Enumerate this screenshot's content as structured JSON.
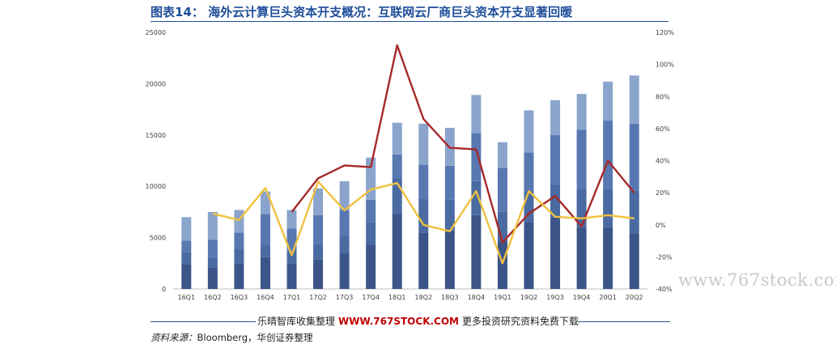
{
  "header": {
    "title": "图表14： 海外云计算巨头资本开支概况：互联网云厂商巨头资本开支显著回暖"
  },
  "footer": {
    "promo_left": "乐晴智库收集整理",
    "promo_url": "WWW.767STOCK.COM",
    "promo_right": "更多投资研究资料免费下载",
    "source_label": "资料来源：",
    "source_text": "Bloomberg，华创证券整理"
  },
  "watermark": "www.767stock.com",
  "chart_data": {
    "type": "bar",
    "stacked": true,
    "categories": [
      "16Q1",
      "16Q2",
      "16Q3",
      "16Q4",
      "17Q1",
      "17Q2",
      "17Q3",
      "17Q4",
      "18Q1",
      "18Q2",
      "18Q3",
      "18Q4",
      "19Q1",
      "19Q2",
      "19Q3",
      "19Q4",
      "20Q1",
      "20Q2"
    ],
    "left_axis": {
      "min": 0,
      "max": 25000,
      "ticks": [
        "0",
        "5000",
        "10000",
        "15000",
        "20000",
        "25000"
      ]
    },
    "right_axis": {
      "min": -40,
      "max": 120,
      "ticks": [
        "-40%",
        "-20%",
        "0%",
        "20%",
        "40%",
        "60%",
        "80%",
        "100%",
        "120%"
      ]
    },
    "grid": false,
    "bar_colors": [
      "#3b5588",
      "#4a6aa2",
      "#5878b2",
      "#8aa4cc"
    ],
    "stack_series": [
      {
        "values": [
          2400,
          2100,
          2500,
          3100,
          2500,
          2900,
          3500,
          4300,
          7300,
          5500,
          5700,
          7200,
          4700,
          6500,
          7000,
          6000,
          6000,
          5400
        ]
      },
      {
        "values": [
          1200,
          1000,
          1400,
          1200,
          1200,
          1500,
          1700,
          2200,
          3500,
          3300,
          3000,
          3300,
          2800,
          3000,
          3200,
          3700,
          3700,
          4200
        ]
      },
      {
        "values": [
          1100,
          1700,
          1600,
          3000,
          2200,
          2800,
          2500,
          2200,
          2300,
          3300,
          3300,
          4700,
          4300,
          3800,
          4800,
          5800,
          6700,
          6500
        ]
      },
      {
        "values": [
          2300,
          2700,
          2200,
          2200,
          1800,
          2600,
          2800,
          4100,
          3100,
          4000,
          3700,
          3700,
          2500,
          4100,
          3400,
          3500,
          3800,
          4700
        ]
      }
    ],
    "line_series": [
      {
        "color": "#a52a2a",
        "axis": "right",
        "values": [
          null,
          null,
          null,
          null,
          8,
          29,
          37,
          36,
          112,
          66,
          48,
          47,
          -11,
          7,
          18,
          -1,
          40,
          20
        ]
      },
      {
        "color": "#f0c040",
        "axis": "right",
        "values": [
          null,
          7,
          3,
          23,
          -19,
          27,
          9,
          22,
          26,
          0,
          -4,
          21,
          -24,
          21,
          5,
          4,
          6,
          4
        ]
      }
    ]
  }
}
